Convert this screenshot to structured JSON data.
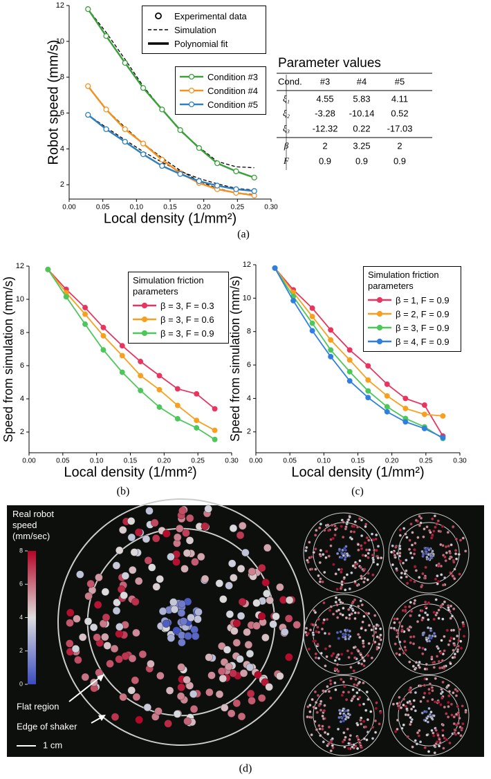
{
  "chart_data": [
    {
      "type": "line",
      "y_label": "Robot speed (mm/s)",
      "x_label": "Local density (1/mm²)",
      "marker": "hollow",
      "x": [
        0.028,
        0.055,
        0.083,
        0.11,
        0.138,
        0.165,
        0.193,
        0.22,
        0.248,
        0.275
      ],
      "xlim": [
        0,
        0.3
      ],
      "ylim": [
        1.2,
        12
      ],
      "xticks": [
        {
          "value": 0,
          "label": "0.00"
        },
        {
          "value": 0.05,
          "label": "0.05"
        },
        {
          "value": 0.1,
          "label": "0.10"
        },
        {
          "value": 0.15,
          "label": "0.15"
        },
        {
          "value": 0.2,
          "label": "0.20"
        },
        {
          "value": 0.25,
          "label": "0.25"
        },
        {
          "value": 0.3,
          "label": "0.30"
        }
      ],
      "yticks": [
        2,
        4,
        6,
        8,
        10,
        12
      ],
      "style_legend": [
        "Experimental data",
        "Simulation",
        "Polynomial fit"
      ],
      "series": [
        {
          "name": "Condition #3",
          "color": "#3aa03a",
          "values": [
            11.8,
            10.3,
            8.8,
            7.4,
            6.2,
            5.05,
            4.05,
            3.2,
            2.75,
            2.4
          ],
          "simulation": [
            11.8,
            10.5,
            9.0,
            7.5,
            6.2,
            5.0,
            4.1,
            3.3,
            3.0,
            2.95
          ]
        },
        {
          "name": "Condition #4",
          "color": "#f39220",
          "values": [
            7.5,
            6.2,
            5.1,
            4.3,
            3.4,
            2.65,
            2.1,
            1.75,
            1.55,
            1.4
          ],
          "simulation": [
            7.5,
            6.2,
            5.2,
            4.3,
            3.5,
            2.8,
            2.2,
            1.8,
            1.55,
            1.45
          ]
        },
        {
          "name": "Condition #5",
          "color": "#2f7fc1",
          "values": [
            5.9,
            5.1,
            4.4,
            3.7,
            3.05,
            2.6,
            2.2,
            1.95,
            1.75,
            1.65
          ],
          "simulation": [
            5.9,
            5.2,
            4.5,
            3.85,
            3.25,
            2.75,
            2.35,
            2.05,
            1.8,
            1.7
          ]
        }
      ]
    },
    {
      "type": "line",
      "y_label": "Speed from simulation (mm/s)",
      "x_label": "Local density (1/mm²)",
      "marker": "filled",
      "legend_title": "Simulation friction parameters",
      "x": [
        0.028,
        0.055,
        0.083,
        0.11,
        0.138,
        0.165,
        0.193,
        0.22,
        0.248,
        0.275
      ],
      "xlim": [
        0,
        0.3
      ],
      "ylim": [
        0.75,
        12
      ],
      "xticks": [
        {
          "value": 0,
          "label": "0.00"
        },
        {
          "value": 0.05,
          "label": "0.05"
        },
        {
          "value": 0.1,
          "label": "0.10"
        },
        {
          "value": 0.15,
          "label": "0.15"
        },
        {
          "value": 0.2,
          "label": "0.20"
        },
        {
          "value": 0.25,
          "label": "0.25"
        },
        {
          "value": 0.3,
          "label": "0.30"
        }
      ],
      "yticks": [
        2,
        4,
        6,
        8,
        10,
        12
      ],
      "series": [
        {
          "name": "β = 3, F = 0.3",
          "color": "#e8345f",
          "values": [
            11.8,
            10.6,
            9.5,
            8.3,
            7.2,
            6.25,
            5.4,
            4.6,
            4.3,
            3.4
          ]
        },
        {
          "name": "β = 3, F = 0.6",
          "color": "#f7a01e",
          "values": [
            11.8,
            10.4,
            9.1,
            7.8,
            6.6,
            5.4,
            4.55,
            3.6,
            2.7,
            2.1
          ]
        },
        {
          "name": "β = 3, F = 0.9",
          "color": "#4cc75a",
          "values": [
            11.8,
            10.15,
            8.5,
            6.95,
            5.6,
            4.5,
            3.5,
            2.8,
            2.25,
            1.55
          ]
        }
      ]
    },
    {
      "type": "line",
      "y_label": "Speed from simulation (mm/s)",
      "x_label": "Local density (1/mm²)",
      "marker": "filled",
      "legend_title": "Simulation friction parameters",
      "x": [
        0.028,
        0.055,
        0.083,
        0.11,
        0.138,
        0.165,
        0.193,
        0.22,
        0.248,
        0.275
      ],
      "xlim": [
        0,
        0.3
      ],
      "ylim": [
        0.75,
        12
      ],
      "xticks": [
        {
          "value": 0,
          "label": "0.00"
        },
        {
          "value": 0.05,
          "label": "0.05"
        },
        {
          "value": 0.1,
          "label": "0.10"
        },
        {
          "value": 0.15,
          "label": "0.15"
        },
        {
          "value": 0.2,
          "label": "0.20"
        },
        {
          "value": 0.25,
          "label": "0.25"
        },
        {
          "value": 0.3,
          "label": "0.30"
        }
      ],
      "yticks": [
        2,
        4,
        6,
        8,
        10,
        12
      ],
      "series": [
        {
          "name": "β = 1, F = 0.9",
          "color": "#e8345f",
          "values": [
            11.8,
            10.5,
            9.4,
            8.1,
            6.9,
            5.95,
            4.85,
            4.0,
            3.6,
            1.75
          ]
        },
        {
          "name": "β = 2, F = 0.9",
          "color": "#f7a01e",
          "values": [
            11.8,
            10.35,
            8.9,
            7.5,
            6.3,
            5.1,
            4.15,
            3.4,
            3.05,
            2.95
          ]
        },
        {
          "name": "β = 3, F = 0.9",
          "color": "#4cc75a",
          "values": [
            11.8,
            10.1,
            8.5,
            6.9,
            5.6,
            4.45,
            3.5,
            2.8,
            2.3,
            1.6
          ]
        },
        {
          "name": "β = 4, F = 0.9",
          "color": "#2f7fe0",
          "values": [
            11.8,
            9.85,
            8.05,
            6.5,
            5.05,
            4.05,
            3.2,
            2.6,
            2.2,
            1.65
          ]
        }
      ]
    }
  ],
  "table": {
    "title": "Parameter values",
    "header": [
      "Cond.",
      "#3",
      "#4",
      "#5"
    ],
    "rows": [
      [
        "ξ₁",
        "4.55",
        "5.83",
        "4.11"
      ],
      [
        "ξ₂",
        "-3.28",
        "-10.14",
        "0.52"
      ],
      [
        "ξ₃",
        "-12.32",
        "0.22",
        "-17.03"
      ],
      [
        "β",
        "2",
        "3.25",
        "2"
      ],
      [
        "F",
        "0.9",
        "0.9",
        "0.9"
      ]
    ]
  },
  "image": {
    "colorbar_label": "Real robot speed (mm/sec)",
    "colorbar_lim": [
      0,
      8
    ],
    "colorbar_ticks": [
      0,
      2,
      4,
      6,
      8
    ],
    "flat_region": "Flat region",
    "edge": "Edge of shaker",
    "scale": "1 cm"
  },
  "panel_labels": [
    "(a)",
    "(b)",
    "(c)",
    "(d)"
  ]
}
